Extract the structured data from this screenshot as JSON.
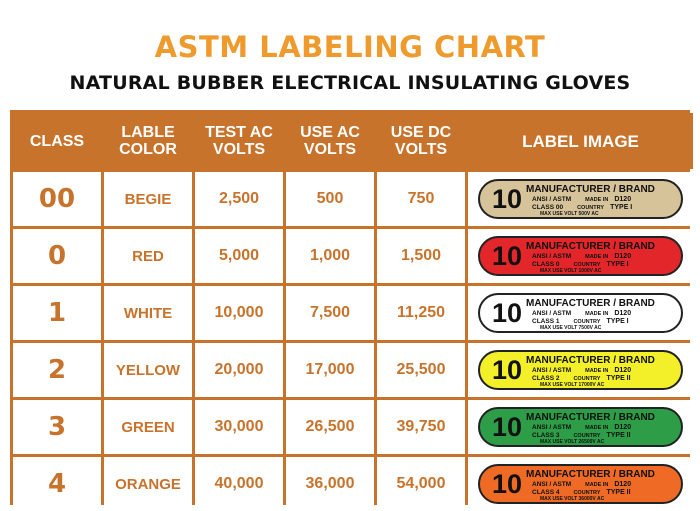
{
  "title": "ASTM LABELING CHART",
  "subtitle": "NATURAL BUBBER ELECTRICAL INSULATING GLOVES",
  "headers": {
    "class": "CLASS",
    "color": "LABLE COLOR",
    "test_ac": "TEST AC VOLTS",
    "use_ac": "USE AC VOLTS",
    "use_dc": "USE DC VOLTS",
    "label": "LABEL IMAGE"
  },
  "colors": {
    "frame": "#c8732c",
    "title": "#ee9a2c",
    "tag_beige": "#d7c39a",
    "tag_red": "#e3262a",
    "tag_white": "#ffffff",
    "tag_yellow": "#f3ef29",
    "tag_green": "#2d9d47",
    "tag_orange": "#ee6a25"
  },
  "rows": [
    {
      "class": "00",
      "color": "BEGIE",
      "test_ac": "2,500",
      "use_ac": "500",
      "use_dc": "750",
      "label": {
        "big": "10",
        "mfg": "MANUFACTURER / BRAND",
        "std": "ANSI / ASTM",
        "made_in": "MADE IN",
        "code": "D120",
        "class_text": "CLASS 00",
        "country": "COUNTRY",
        "type": "TYPE I",
        "max": "MAX USE VOLT 500V AC",
        "bg": "#d7c39a"
      }
    },
    {
      "class": "0",
      "color": "RED",
      "test_ac": "5,000",
      "use_ac": "1,000",
      "use_dc": "1,500",
      "label": {
        "big": "10",
        "mfg": "MANUFACTURER / BRAND",
        "std": "ANSI / ASTM",
        "made_in": "MADE IN",
        "code": "D120",
        "class_text": "CLASS 0",
        "country": "COUNTRY",
        "type": "TYPE I",
        "max": "MAX USE VOLT 1000V AC",
        "bg": "#e3262a"
      }
    },
    {
      "class": "1",
      "color": "WHITE",
      "test_ac": "10,000",
      "use_ac": "7,500",
      "use_dc": "11,250",
      "label": {
        "big": "10",
        "mfg": "MANUFACTURER / BRAND",
        "std": "ANSI / ASTM",
        "made_in": "MADE IN",
        "code": "D120",
        "class_text": "CLASS 1",
        "country": "COUNTRY",
        "type": "TYPE I",
        "max": "MAX USE VOLT 7500V AC",
        "bg": "#ffffff"
      }
    },
    {
      "class": "2",
      "color": "YELLOW",
      "test_ac": "20,000",
      "use_ac": "17,000",
      "use_dc": "25,500",
      "label": {
        "big": "10",
        "mfg": "MANUFACTURER / BRAND",
        "std": "ANSI / ASTM",
        "made_in": "MADE IN",
        "code": "D120",
        "class_text": "CLASS 2",
        "country": "COUNTRY",
        "type": "TYPE II",
        "max": "MAX USE VOLT 17000V AC",
        "bg": "#f3ef29"
      }
    },
    {
      "class": "3",
      "color": "GREEN",
      "test_ac": "30,000",
      "use_ac": "26,500",
      "use_dc": "39,750",
      "label": {
        "big": "10",
        "mfg": "MANUFACTURER / BRAND",
        "std": "ANSI / ASTM",
        "made_in": "MADE IN",
        "code": "D120",
        "class_text": "CLASS 3",
        "country": "COUNTRY",
        "type": "TYPE II",
        "max": "MAX USE VOLT 26500V AC",
        "bg": "#2d9d47"
      }
    },
    {
      "class": "4",
      "color": "ORANGE",
      "test_ac": "40,000",
      "use_ac": "36,000",
      "use_dc": "54,000",
      "label": {
        "big": "10",
        "mfg": "MANUFACTURER / BRAND",
        "std": "ANSI / ASTM",
        "made_in": "MADE IN",
        "code": "D120",
        "class_text": "CLASS 4",
        "country": "COUNTRY",
        "type": "TYPE II",
        "max": "MAX USE VOLT 36000V AC",
        "bg": "#ee6a25"
      }
    }
  ]
}
